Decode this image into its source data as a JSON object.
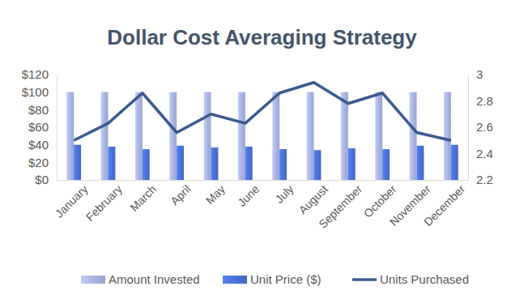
{
  "chart_data": {
    "type": "bar",
    "title": "Dollar Cost Averaging Strategy",
    "categories": [
      "January",
      "February",
      "March",
      "April",
      "May",
      "June",
      "July",
      "August",
      "September",
      "October",
      "November",
      "December"
    ],
    "series": [
      {
        "name": "Amount Invested",
        "type": "bar",
        "color": "#aab4e2",
        "values": [
          100,
          100,
          100,
          100,
          100,
          100,
          100,
          100,
          100,
          100,
          100,
          100
        ]
      },
      {
        "name": "Unit Price ($)",
        "type": "bar",
        "color": "#4a72d8",
        "values": [
          40,
          38,
          35,
          39,
          37,
          38,
          35,
          34,
          36,
          35,
          39,
          40
        ]
      },
      {
        "name": "Units Purchased",
        "type": "line",
        "axis": "y2",
        "color": "#3b5a8f",
        "values": [
          2.5,
          2.63,
          2.86,
          2.56,
          2.7,
          2.63,
          2.86,
          2.94,
          2.78,
          2.86,
          2.56,
          2.5
        ]
      }
    ],
    "ylim": [
      0,
      120
    ],
    "yticks": [
      {
        "value": 0,
        "label": "$0"
      },
      {
        "value": 20,
        "label": "$20"
      },
      {
        "value": 40,
        "label": "$40"
      },
      {
        "value": 60,
        "label": "$60"
      },
      {
        "value": 80,
        "label": "$80"
      },
      {
        "value": 100,
        "label": "$100"
      },
      {
        "value": 120,
        "label": "$120"
      }
    ],
    "y2lim": [
      2.2,
      3
    ],
    "y2ticks": [
      2.2,
      2.4,
      2.6,
      2.8,
      3
    ],
    "grid": false,
    "legend": "bottom"
  }
}
